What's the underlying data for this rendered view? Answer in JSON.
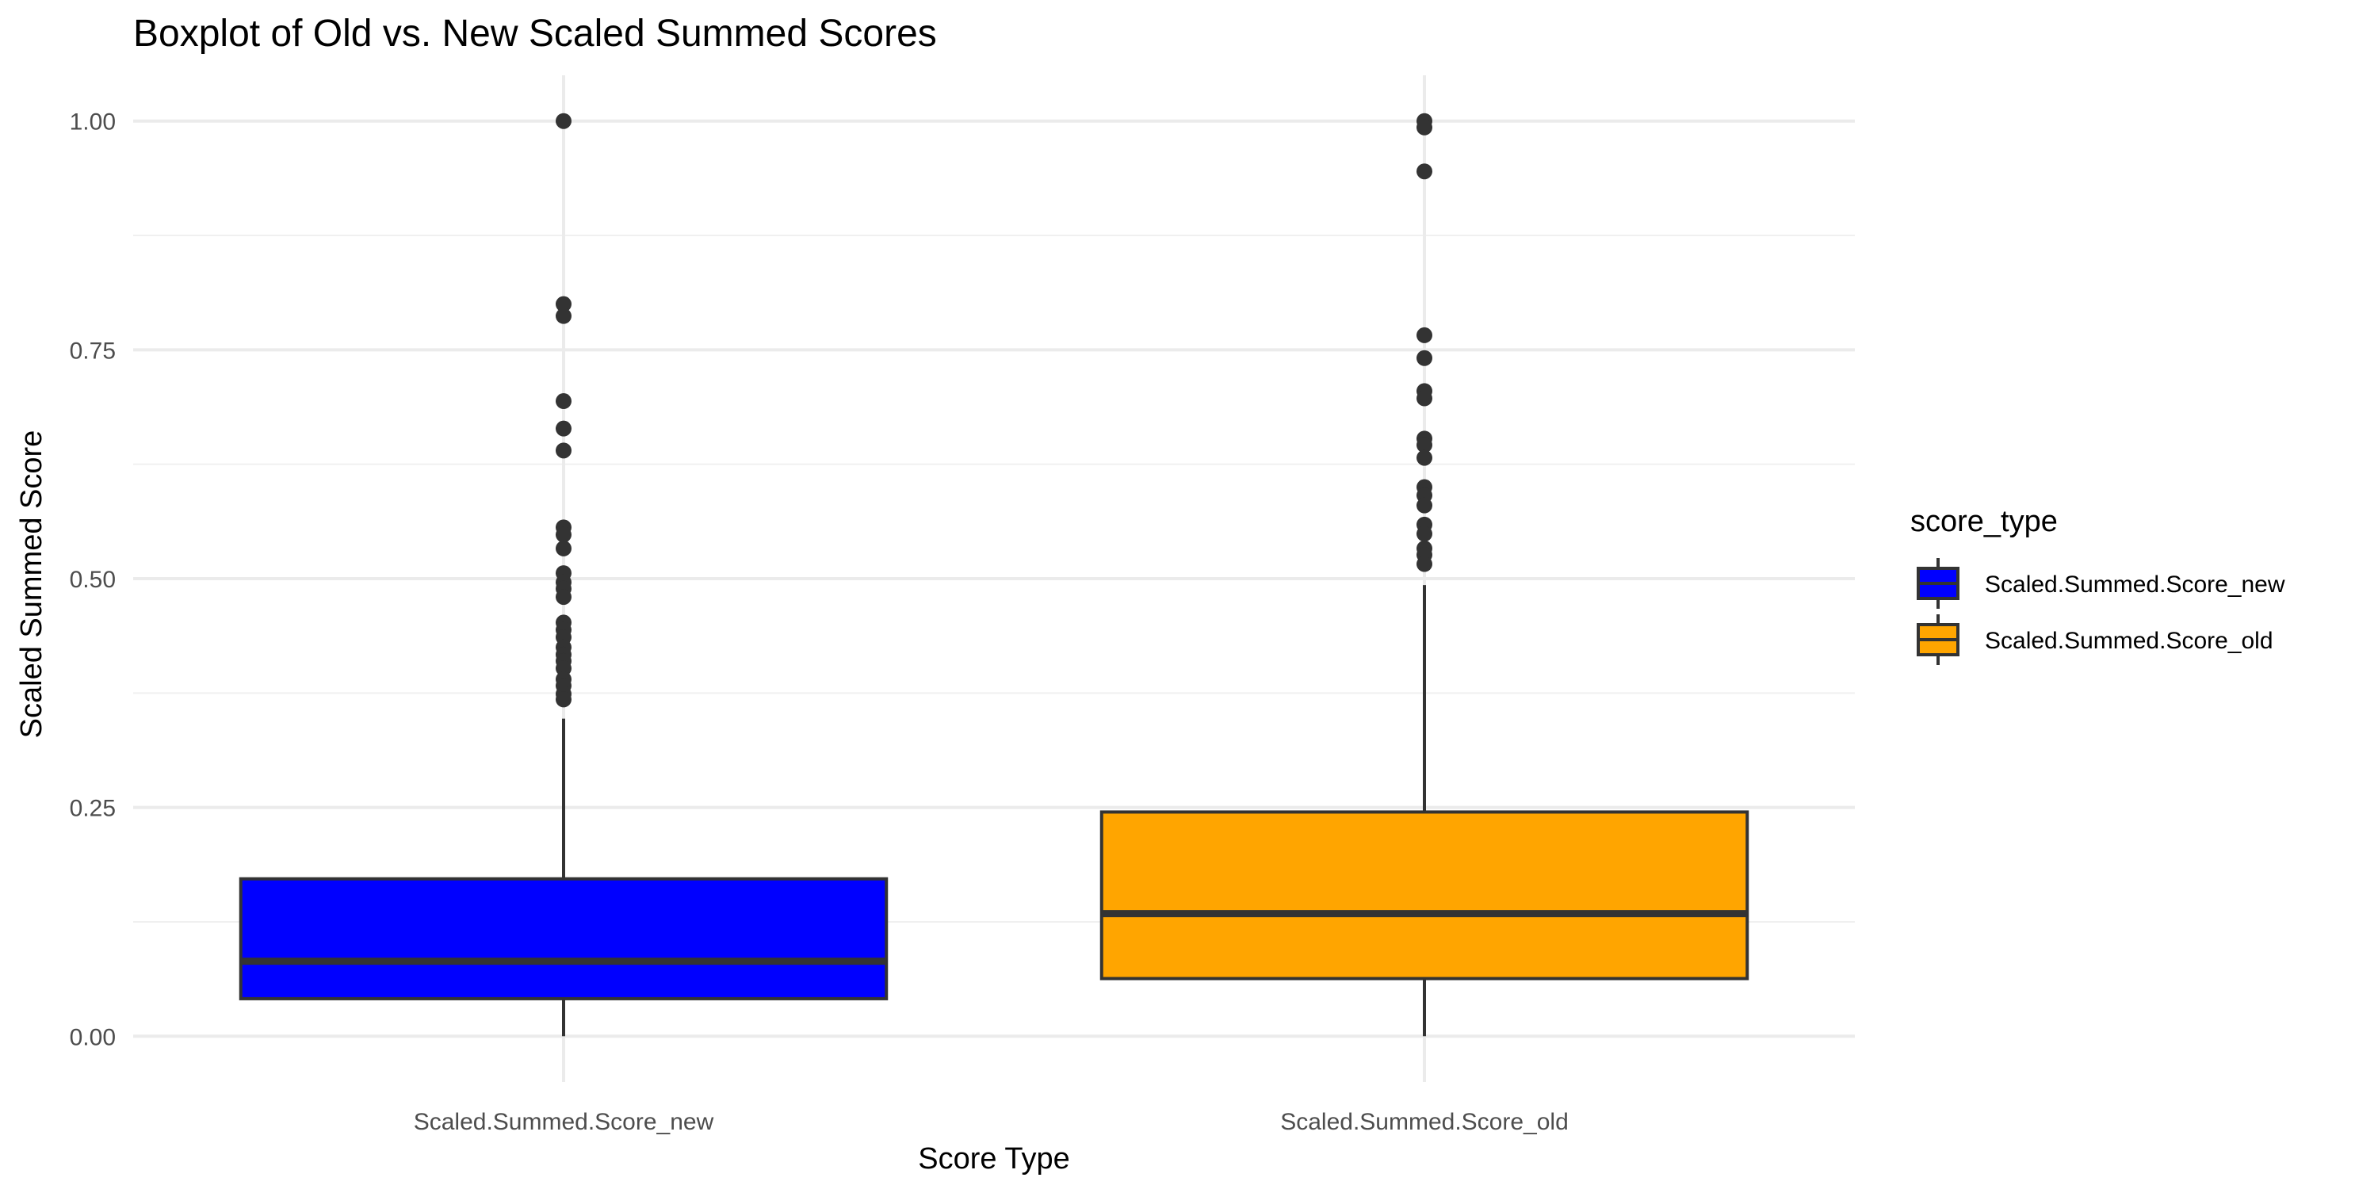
{
  "chart_data": {
    "type": "boxplot",
    "title": "Boxplot of Old vs. New Scaled Summed Scores",
    "xlabel": "Score Type",
    "ylabel": "Scaled Summed Score",
    "ylim": [
      -0.05,
      1.05
    ],
    "yticks": [
      0.0,
      0.25,
      0.5,
      0.75,
      1.0
    ],
    "ytick_labels": [
      "0.00",
      "0.25",
      "0.50",
      "0.75",
      "1.00"
    ],
    "grid": true,
    "legend": {
      "title": "score_type",
      "position": "right"
    },
    "categories": [
      "Scaled.Summed.Score_new",
      "Scaled.Summed.Score_old"
    ],
    "series": [
      {
        "name": "Scaled.Summed.Score_new",
        "color": "#0000ff",
        "min": 0.0,
        "q1": 0.041,
        "median": 0.082,
        "q3": 0.172,
        "max": 0.347,
        "outliers": [
          1.0,
          0.8,
          0.787,
          0.694,
          0.664,
          0.64,
          0.556,
          0.548,
          0.533,
          0.506,
          0.496,
          0.489,
          0.48,
          0.452,
          0.444,
          0.436,
          0.425,
          0.417,
          0.41,
          0.402,
          0.39,
          0.383,
          0.374,
          0.368
        ]
      },
      {
        "name": "Scaled.Summed.Score_old",
        "color": "#ffa500",
        "min": 0.0,
        "q1": 0.063,
        "median": 0.134,
        "q3": 0.245,
        "max": 0.493,
        "outliers": [
          1.0,
          0.993,
          0.945,
          0.766,
          0.741,
          0.705,
          0.697,
          0.653,
          0.646,
          0.632,
          0.6,
          0.591,
          0.58,
          0.559,
          0.549,
          0.533,
          0.526,
          0.516
        ]
      }
    ]
  }
}
